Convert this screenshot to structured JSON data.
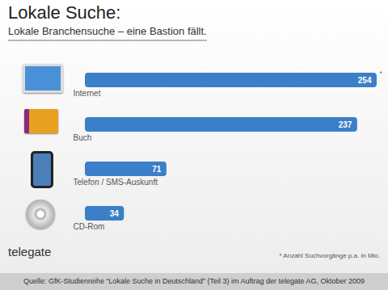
{
  "chart_data": {
    "type": "bar",
    "orientation": "horizontal",
    "title": "Lokale Suche:",
    "subtitle": "Lokale Branchensuche – eine Bastion fällt.",
    "categories": [
      "Internet",
      "Buch",
      "Telefon / SMS-Auskunft",
      "CD-Rom"
    ],
    "values": [
      254,
      237,
      71,
      34
    ],
    "color": "#3b7fc8",
    "data_labels": true,
    "tick_labels": false,
    "grid": false,
    "annotations": [
      {
        "category": "Internet",
        "text": "*"
      }
    ],
    "footnote": "* Anzahl Suchvorgänge p.a. in Mio.",
    "logo": "telegate",
    "source": "Quelle: GfK-Studienreihe “Lokale Suche in Deutschland” (Teil 3) im Auftrag der telegate AG, Oktober 2009"
  }
}
